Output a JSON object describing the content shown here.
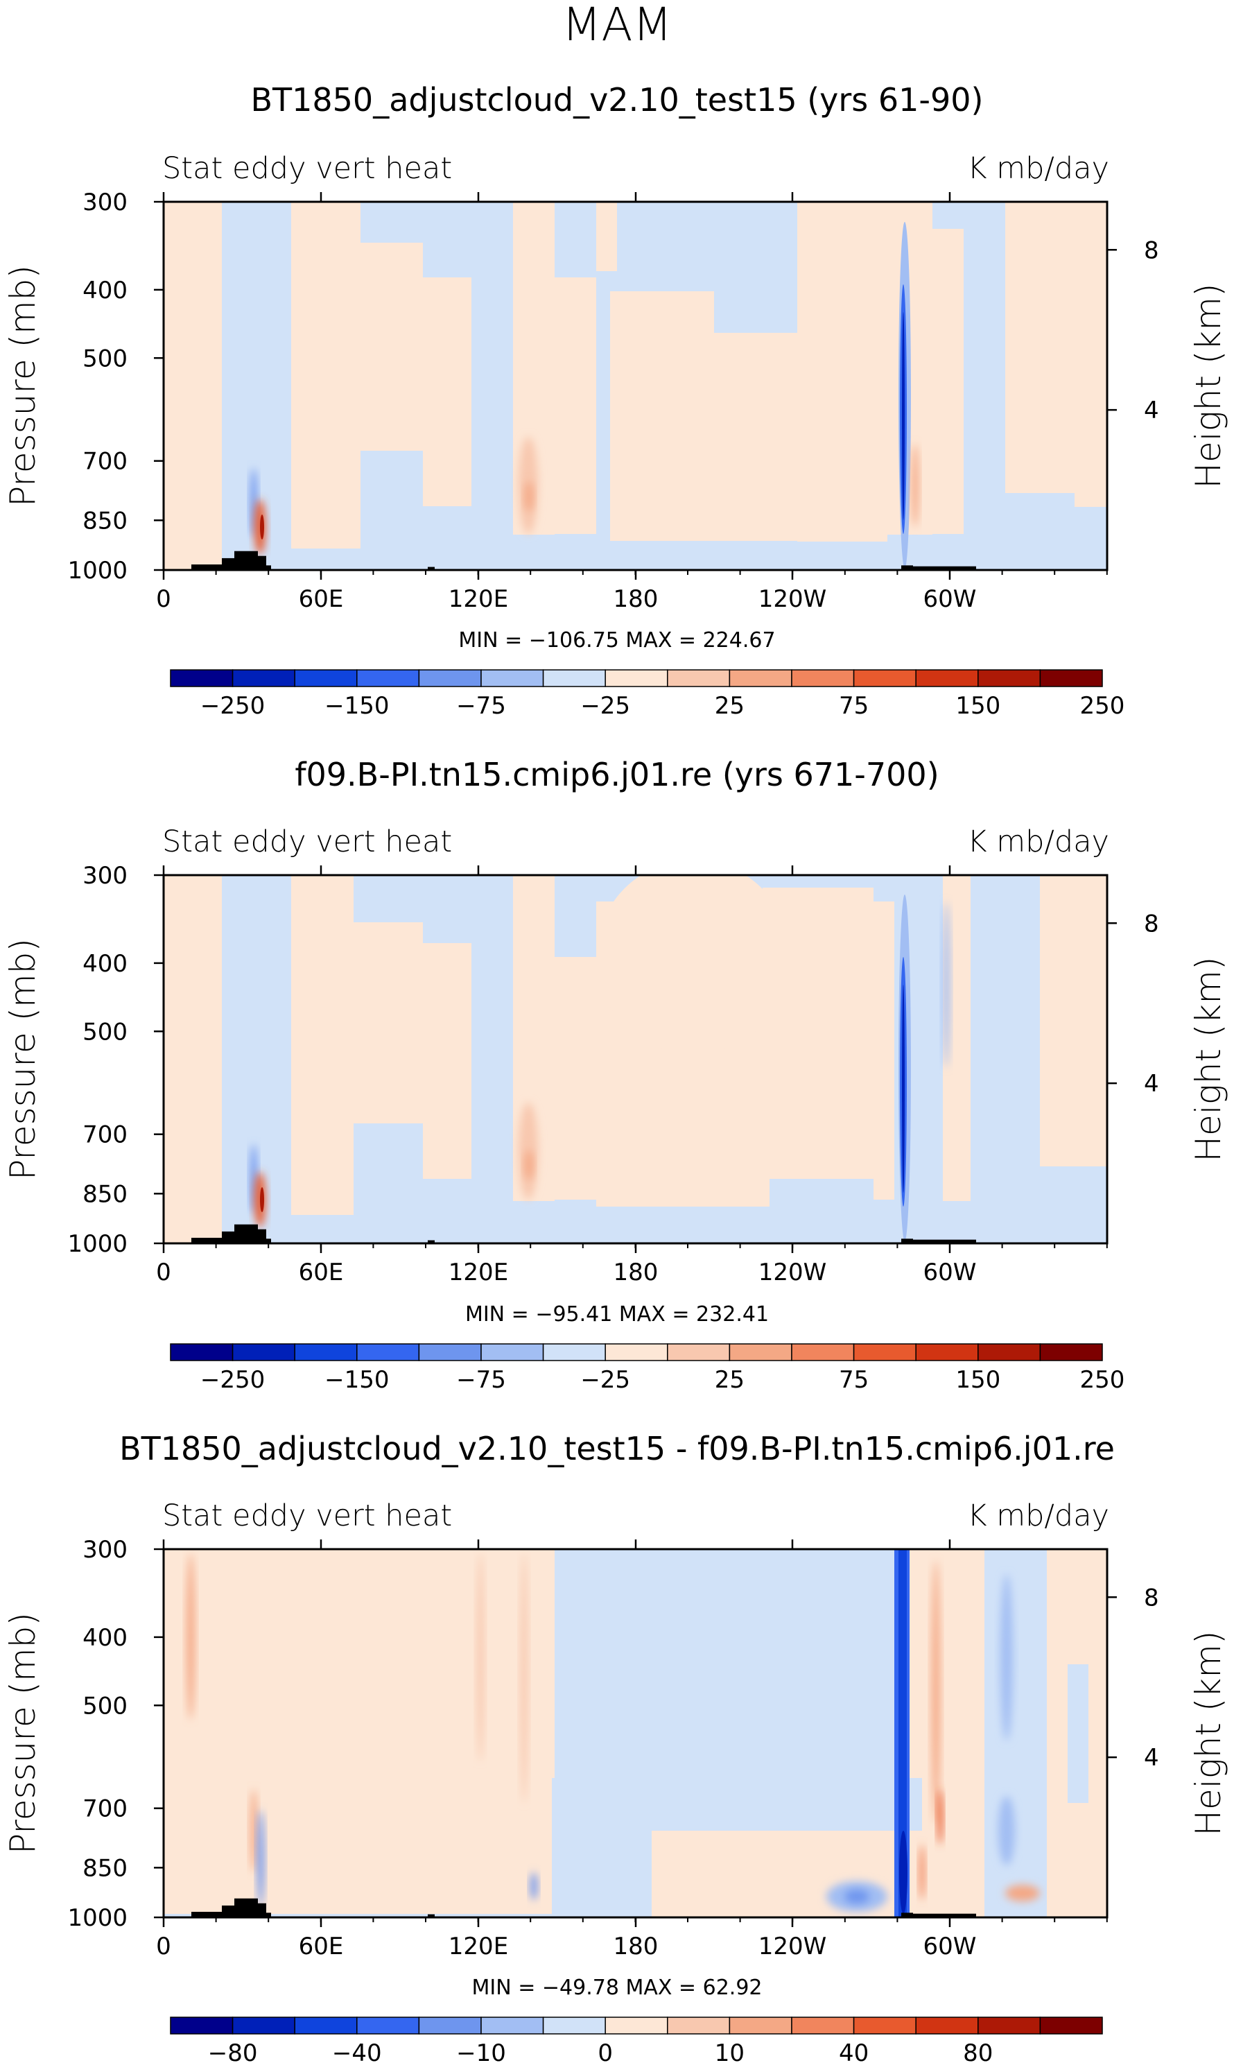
{
  "figure_title": "MAM",
  "chart_data": [
    {
      "type": "heatmap",
      "title": "BT1850_adjustcloud_v2.10_test15 (yrs 61-90)",
      "left_label": "Stat eddy vert heat",
      "right_label": "K mb/day",
      "ylabel": "Pressure (mb)",
      "ylabel_right": "Height (km)",
      "x_ticks": [
        "0",
        "60E",
        "120E",
        "180",
        "120W",
        "60W"
      ],
      "y_ticks": [
        "300",
        "400",
        "500",
        "700",
        "850",
        "1000"
      ],
      "y_right_ticks": [
        "8",
        "4"
      ],
      "stats": "MIN = −106.75   MAX = 224.67",
      "colorbar_labels": [
        "−250",
        "−150",
        "−75",
        "−25",
        "25",
        "75",
        "150",
        "250"
      ],
      "colorbar_colors": [
        "#00008b",
        "#0020b8",
        "#0f44dd",
        "#3466f0",
        "#6e95ee",
        "#a2bef3",
        "#d1e2f8",
        "#fde7d6",
        "#f8c8af",
        "#f4a885",
        "#f1855d",
        "#e85a2e",
        "#d13412",
        "#ad1906",
        "#7d0000"
      ],
      "range": {
        "min": -106.75,
        "max": 224.67
      }
    },
    {
      "type": "heatmap",
      "title": "f09.B-PI.tn15.cmip6.j01.re (yrs 671-700)",
      "left_label": "Stat eddy vert heat",
      "right_label": "K mb/day",
      "ylabel": "Pressure (mb)",
      "ylabel_right": "Height (km)",
      "x_ticks": [
        "0",
        "60E",
        "120E",
        "180",
        "120W",
        "60W"
      ],
      "y_ticks": [
        "300",
        "400",
        "500",
        "700",
        "850",
        "1000"
      ],
      "y_right_ticks": [
        "8",
        "4"
      ],
      "stats": "MIN = −95.41   MAX = 232.41",
      "colorbar_labels": [
        "−250",
        "−150",
        "−75",
        "−25",
        "25",
        "75",
        "150",
        "250"
      ],
      "colorbar_colors": [
        "#00008b",
        "#0020b8",
        "#0f44dd",
        "#3466f0",
        "#6e95ee",
        "#a2bef3",
        "#d1e2f8",
        "#fde7d6",
        "#f8c8af",
        "#f4a885",
        "#f1855d",
        "#e85a2e",
        "#d13412",
        "#ad1906",
        "#7d0000"
      ],
      "range": {
        "min": -95.41,
        "max": 232.41
      }
    },
    {
      "type": "heatmap",
      "title": "BT1850_adjustcloud_v2.10_test15 - f09.B-PI.tn15.cmip6.j01.re",
      "left_label": "Stat eddy vert heat",
      "right_label": "K mb/day",
      "ylabel": "Pressure (mb)",
      "ylabel_right": "Height (km)",
      "x_ticks": [
        "0",
        "60E",
        "120E",
        "180",
        "120W",
        "60W"
      ],
      "y_ticks": [
        "300",
        "400",
        "500",
        "700",
        "850",
        "1000"
      ],
      "y_right_ticks": [
        "8",
        "4"
      ],
      "stats": "MIN = −49.78   MAX =   62.92",
      "colorbar_labels": [
        "−80",
        "−40",
        "−10",
        "0",
        "10",
        "40",
        "80"
      ],
      "colorbar_colors": [
        "#00008b",
        "#0020b8",
        "#0f44dd",
        "#3466f0",
        "#6e95ee",
        "#a2bef3",
        "#d1e2f8",
        "#fde7d6",
        "#f8c8af",
        "#f4a885",
        "#f1855d",
        "#e85a2e",
        "#d13412",
        "#ad1906",
        "#7d0000"
      ],
      "range": {
        "min": -49.78,
        "max": 62.92
      }
    }
  ]
}
